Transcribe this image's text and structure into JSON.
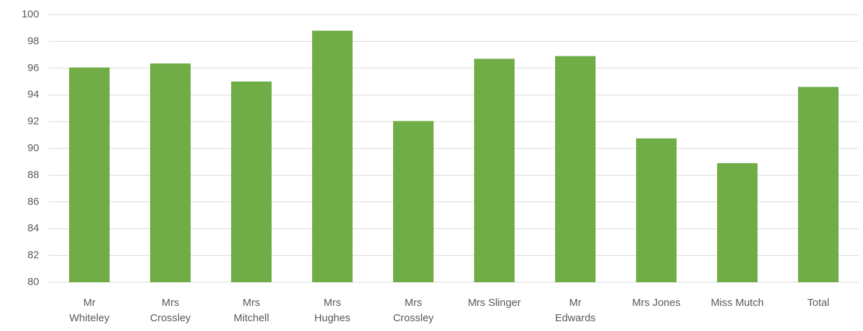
{
  "chart_data": {
    "type": "bar",
    "categories": [
      "Mr\nWhiteley",
      "Mrs\nCrossley",
      "Mrs\nMitchell",
      "Mrs\nHughes",
      "Mrs\nCrossley",
      "Mrs Slinger",
      "Mr\nEdwards",
      "Mrs Jones",
      "Miss Mutch",
      "Total"
    ],
    "values": [
      96.05,
      96.35,
      95.0,
      98.8,
      92.05,
      96.7,
      96.9,
      90.75,
      88.9,
      94.6
    ],
    "color": "#70ad47",
    "ylim": [
      80,
      100
    ],
    "yticks": [
      80,
      82,
      84,
      86,
      88,
      90,
      92,
      94,
      96,
      98,
      100
    ],
    "grid": true
  }
}
